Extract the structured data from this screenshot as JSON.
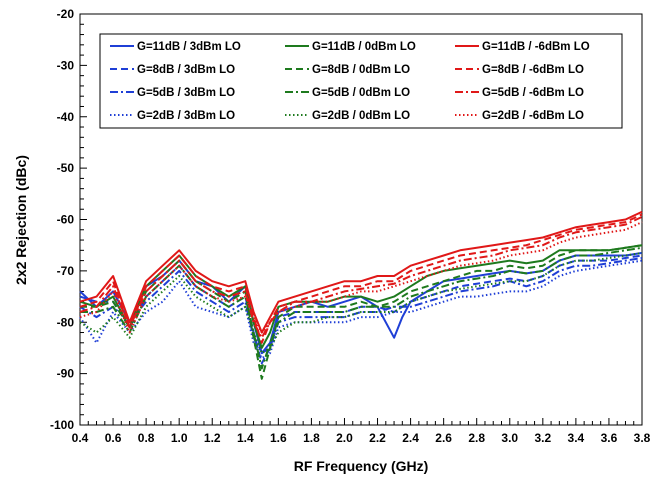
{
  "chart_data": {
    "type": "line",
    "xlabel": "RF Frequency (GHz)",
    "ylabel": "2x2 Rejection (dBc)",
    "xlim": [
      0.4,
      3.8
    ],
    "ylim": [
      -100,
      -20
    ],
    "xticks": [
      "0.4",
      "0.6",
      "0.8",
      "1.0",
      "1.2",
      "1.4",
      "1.6",
      "1.8",
      "2.0",
      "2.2",
      "2.4",
      "2.6",
      "2.8",
      "3.0",
      "3.2",
      "3.4",
      "3.6",
      "3.8"
    ],
    "yticks": [
      "-20",
      "-30",
      "-40",
      "-50",
      "-60",
      "-70",
      "-80",
      "-90",
      "-100"
    ],
    "grid": false,
    "legend_position": "top",
    "colors": {
      "blue": "#1f3fd6",
      "green": "#1e7a1e",
      "red": "#e01818"
    },
    "series": [
      {
        "name": "G=11dB / 3dBm LO",
        "color": "blue",
        "dash": "solid",
        "x": [
          0.4,
          0.5,
          0.6,
          0.7,
          0.8,
          0.9,
          1.0,
          1.1,
          1.2,
          1.3,
          1.4,
          1.45,
          1.5,
          1.55,
          1.6,
          1.7,
          1.8,
          1.9,
          2.0,
          2.1,
          2.2,
          2.25,
          2.3,
          2.35,
          2.4,
          2.5,
          2.6,
          2.7,
          2.8,
          2.9,
          3.0,
          3.1,
          3.2,
          3.3,
          3.4,
          3.5,
          3.6,
          3.7,
          3.8
        ],
        "y": [
          -74,
          -77,
          -74,
          -80,
          -73,
          -71,
          -68,
          -72,
          -73,
          -76,
          -73,
          -80,
          -86,
          -84,
          -78,
          -77,
          -76,
          -77,
          -76,
          -75,
          -77,
          -80,
          -83,
          -79,
          -76,
          -74,
          -72,
          -71.5,
          -71,
          -70.5,
          -70,
          -70.5,
          -70,
          -68,
          -67,
          -67,
          -67,
          -67,
          -66.5
        ]
      },
      {
        "name": "G=8dB / 3dBm LO",
        "color": "blue",
        "dash": "dash",
        "x": [
          0.4,
          0.5,
          0.6,
          0.7,
          0.8,
          0.9,
          1.0,
          1.1,
          1.2,
          1.3,
          1.4,
          1.45,
          1.5,
          1.55,
          1.6,
          1.7,
          1.8,
          1.9,
          2.0,
          2.1,
          2.2,
          2.3,
          2.4,
          2.5,
          2.6,
          2.7,
          2.8,
          2.9,
          3.0,
          3.1,
          3.2,
          3.3,
          3.4,
          3.5,
          3.6,
          3.7,
          3.8
        ],
        "y": [
          -75,
          -76,
          -76,
          -81,
          -75,
          -72,
          -69,
          -73,
          -75,
          -77,
          -75,
          -82,
          -88,
          -85,
          -79,
          -78,
          -78,
          -78,
          -78,
          -77,
          -77,
          -78,
          -76,
          -75,
          -74,
          -73,
          -72.5,
          -72,
          -71.5,
          -72,
          -71,
          -69,
          -68,
          -68,
          -68,
          -67.5,
          -67
        ]
      },
      {
        "name": "G=5dB / 3dBm LO",
        "color": "blue",
        "dash": "dashdot",
        "x": [
          0.4,
          0.5,
          0.6,
          0.7,
          0.8,
          0.9,
          1.0,
          1.1,
          1.2,
          1.3,
          1.4,
          1.45,
          1.5,
          1.55,
          1.6,
          1.7,
          1.8,
          1.9,
          2.0,
          2.1,
          2.2,
          2.3,
          2.4,
          2.5,
          2.6,
          2.7,
          2.8,
          2.9,
          3.0,
          3.1,
          3.2,
          3.3,
          3.4,
          3.5,
          3.6,
          3.7,
          3.8
        ],
        "y": [
          -77,
          -79,
          -77,
          -80,
          -76,
          -73,
          -70,
          -74,
          -76,
          -78,
          -76,
          -83,
          -86,
          -85,
          -80,
          -79,
          -79,
          -79,
          -79,
          -78,
          -78,
          -77,
          -77,
          -76,
          -75,
          -74,
          -73.5,
          -73,
          -72,
          -73,
          -72,
          -70,
          -69,
          -69,
          -68.5,
          -68,
          -67.5
        ]
      },
      {
        "name": "G=2dB / 3dBm LO",
        "color": "blue",
        "dash": "dot",
        "x": [
          0.4,
          0.5,
          0.6,
          0.7,
          0.8,
          0.9,
          1.0,
          1.1,
          1.2,
          1.3,
          1.4,
          1.45,
          1.5,
          1.55,
          1.6,
          1.7,
          1.8,
          1.9,
          2.0,
          2.1,
          2.2,
          2.3,
          2.4,
          2.5,
          2.6,
          2.7,
          2.8,
          2.9,
          3.0,
          3.1,
          3.2,
          3.3,
          3.4,
          3.5,
          3.6,
          3.7,
          3.8
        ],
        "y": [
          -79,
          -84,
          -78,
          -82,
          -78,
          -76,
          -72,
          -77,
          -78,
          -79,
          -77,
          -84,
          -87,
          -86,
          -81,
          -80,
          -80,
          -80,
          -80,
          -79,
          -79,
          -78,
          -78,
          -77,
          -76,
          -75,
          -75,
          -74.5,
          -74,
          -74,
          -73,
          -71,
          -70,
          -69.5,
          -69,
          -68.5,
          -68
        ]
      },
      {
        "name": "G=11dB / 0dBm LO",
        "color": "green",
        "dash": "solid",
        "x": [
          0.4,
          0.5,
          0.6,
          0.7,
          0.8,
          0.9,
          1.0,
          1.1,
          1.2,
          1.3,
          1.4,
          1.45,
          1.5,
          1.55,
          1.6,
          1.7,
          1.8,
          1.9,
          2.0,
          2.1,
          2.2,
          2.3,
          2.4,
          2.5,
          2.6,
          2.7,
          2.8,
          2.9,
          3.0,
          3.1,
          3.2,
          3.3,
          3.4,
          3.5,
          3.6,
          3.7,
          3.8
        ],
        "y": [
          -76,
          -77,
          -75,
          -81,
          -73,
          -70,
          -67,
          -71,
          -73,
          -75,
          -73,
          -80,
          -85,
          -82,
          -77,
          -76,
          -76,
          -76,
          -75,
          -75,
          -76,
          -75,
          -73,
          -71,
          -70,
          -69.5,
          -69,
          -68.5,
          -68,
          -68.5,
          -68,
          -66,
          -66,
          -66,
          -66,
          -65.5,
          -65
        ]
      },
      {
        "name": "G=8dB / 0dBm LO",
        "color": "green",
        "dash": "dash",
        "x": [
          0.4,
          0.5,
          0.6,
          0.7,
          0.8,
          0.9,
          1.0,
          1.1,
          1.2,
          1.3,
          1.4,
          1.45,
          1.5,
          1.55,
          1.6,
          1.7,
          1.8,
          1.9,
          2.0,
          2.1,
          2.2,
          2.3,
          2.4,
          2.5,
          2.6,
          2.7,
          2.8,
          2.9,
          3.0,
          3.1,
          3.2,
          3.3,
          3.4,
          3.5,
          3.6,
          3.7,
          3.8
        ],
        "y": [
          -77,
          -77,
          -76,
          -81,
          -74,
          -71,
          -68,
          -72,
          -74,
          -76,
          -74,
          -83,
          -91,
          -85,
          -79,
          -77,
          -77,
          -77,
          -77,
          -76,
          -77,
          -76,
          -74,
          -73,
          -72,
          -71,
          -70,
          -70,
          -69,
          -69.5,
          -69,
          -67,
          -66,
          -66,
          -66,
          -65.5,
          -65
        ]
      },
      {
        "name": "G=5dB / 0dBm LO",
        "color": "green",
        "dash": "dashdot",
        "x": [
          0.4,
          0.5,
          0.6,
          0.7,
          0.8,
          0.9,
          1.0,
          1.1,
          1.2,
          1.3,
          1.4,
          1.45,
          1.5,
          1.55,
          1.6,
          1.7,
          1.8,
          1.9,
          2.0,
          2.1,
          2.2,
          2.3,
          2.4,
          2.5,
          2.6,
          2.7,
          2.8,
          2.9,
          3.0,
          3.1,
          3.2,
          3.3,
          3.4,
          3.5,
          3.6,
          3.7,
          3.8
        ],
        "y": [
          -78,
          -78,
          -77,
          -82,
          -75,
          -72,
          -69,
          -73,
          -75,
          -77,
          -75,
          -82,
          -89,
          -84,
          -80,
          -78,
          -78,
          -78,
          -78,
          -77,
          -77,
          -77,
          -75,
          -74,
          -73,
          -72,
          -71.5,
          -71,
          -70,
          -70.5,
          -70,
          -68,
          -67,
          -67,
          -66.5,
          -66,
          -65.5
        ]
      },
      {
        "name": "G=2dB / 0dBm LO",
        "color": "green",
        "dash": "dot",
        "x": [
          0.4,
          0.5,
          0.6,
          0.7,
          0.8,
          0.9,
          1.0,
          1.1,
          1.2,
          1.3,
          1.4,
          1.45,
          1.5,
          1.55,
          1.6,
          1.7,
          1.8,
          1.9,
          2.0,
          2.1,
          2.2,
          2.3,
          2.4,
          2.5,
          2.6,
          2.7,
          2.8,
          2.9,
          3.0,
          3.1,
          3.2,
          3.3,
          3.4,
          3.5,
          3.6,
          3.7,
          3.8
        ],
        "y": [
          -80,
          -82,
          -79,
          -83,
          -77,
          -74,
          -71,
          -75,
          -77,
          -79,
          -77,
          -82,
          -86,
          -85,
          -82,
          -80,
          -80,
          -79,
          -79,
          -78,
          -78,
          -78,
          -76,
          -75,
          -74,
          -73.5,
          -73,
          -72.5,
          -72,
          -72,
          -71,
          -69,
          -68,
          -68,
          -67.5,
          -67,
          -66.5
        ]
      },
      {
        "name": "G=11dB / -6dBm LO",
        "color": "red",
        "dash": "solid",
        "x": [
          0.4,
          0.5,
          0.6,
          0.7,
          0.8,
          0.9,
          1.0,
          1.1,
          1.2,
          1.3,
          1.4,
          1.45,
          1.5,
          1.55,
          1.6,
          1.7,
          1.8,
          1.9,
          2.0,
          2.1,
          2.2,
          2.3,
          2.4,
          2.5,
          2.6,
          2.7,
          2.8,
          2.9,
          3.0,
          3.1,
          3.2,
          3.3,
          3.4,
          3.5,
          3.6,
          3.7,
          3.8
        ],
        "y": [
          -76,
          -75,
          -71,
          -80,
          -72,
          -69,
          -66,
          -70,
          -72,
          -73,
          -72,
          -78,
          -82,
          -79,
          -76,
          -75,
          -74,
          -73,
          -72,
          -72,
          -71,
          -71,
          -69,
          -68,
          -67,
          -66,
          -65.5,
          -65,
          -64.5,
          -64,
          -63.5,
          -62.5,
          -61.5,
          -61,
          -60.5,
          -60,
          -58.5
        ]
      },
      {
        "name": "G=8dB / -6dBm LO",
        "color": "red",
        "dash": "dash",
        "x": [
          0.4,
          0.5,
          0.6,
          0.7,
          0.8,
          0.9,
          1.0,
          1.1,
          1.2,
          1.3,
          1.4,
          1.45,
          1.5,
          1.55,
          1.6,
          1.7,
          1.8,
          1.9,
          2.0,
          2.1,
          2.2,
          2.3,
          2.4,
          2.5,
          2.6,
          2.7,
          2.8,
          2.9,
          3.0,
          3.1,
          3.2,
          3.3,
          3.4,
          3.5,
          3.6,
          3.7,
          3.8
        ],
        "y": [
          -77,
          -76,
          -72,
          -81,
          -73,
          -70,
          -67,
          -71,
          -73,
          -74,
          -73,
          -79,
          -84,
          -80,
          -77,
          -76,
          -75,
          -74,
          -73,
          -73,
          -72,
          -72,
          -70,
          -69,
          -68,
          -67,
          -66.5,
          -66,
          -65.5,
          -65,
          -64,
          -63,
          -62,
          -61.5,
          -61,
          -60.5,
          -59
        ]
      },
      {
        "name": "G=5dB / -6dBm LO",
        "color": "red",
        "dash": "dashdot",
        "x": [
          0.4,
          0.5,
          0.6,
          0.7,
          0.8,
          0.9,
          1.0,
          1.1,
          1.2,
          1.3,
          1.4,
          1.45,
          1.5,
          1.55,
          1.6,
          1.7,
          1.8,
          1.9,
          2.0,
          2.1,
          2.2,
          2.3,
          2.4,
          2.5,
          2.6,
          2.7,
          2.8,
          2.9,
          3.0,
          3.1,
          3.2,
          3.3,
          3.4,
          3.5,
          3.6,
          3.7,
          3.8
        ],
        "y": [
          -78,
          -77,
          -73,
          -81,
          -74,
          -71,
          -68,
          -72,
          -74,
          -75,
          -74,
          -80,
          -83,
          -80,
          -78,
          -76,
          -76,
          -75,
          -74,
          -73.5,
          -73,
          -72.5,
          -71,
          -70,
          -69,
          -68,
          -67.5,
          -67,
          -66,
          -65.5,
          -65,
          -63.5,
          -62.5,
          -62,
          -61.5,
          -61,
          -59.5
        ]
      },
      {
        "name": "G=2dB / -6dBm LO",
        "color": "red",
        "dash": "dot",
        "x": [
          0.4,
          0.5,
          0.6,
          0.7,
          0.8,
          0.9,
          1.0,
          1.1,
          1.2,
          1.3,
          1.4,
          1.45,
          1.5,
          1.55,
          1.6,
          1.7,
          1.8,
          1.9,
          2.0,
          2.1,
          2.2,
          2.3,
          2.4,
          2.5,
          2.6,
          2.7,
          2.8,
          2.9,
          3.0,
          3.1,
          3.2,
          3.3,
          3.4,
          3.5,
          3.6,
          3.7,
          3.8
        ],
        "y": [
          -79,
          -78,
          -74,
          -82,
          -75,
          -72,
          -69,
          -73,
          -75,
          -76,
          -75,
          -79,
          -82,
          -80,
          -78,
          -77,
          -76,
          -76,
          -75,
          -74,
          -74,
          -73,
          -72,
          -71,
          -70,
          -69,
          -68.5,
          -68,
          -67,
          -66.5,
          -66,
          -64.5,
          -63.5,
          -63,
          -62.5,
          -62,
          -60.5
        ]
      }
    ]
  }
}
